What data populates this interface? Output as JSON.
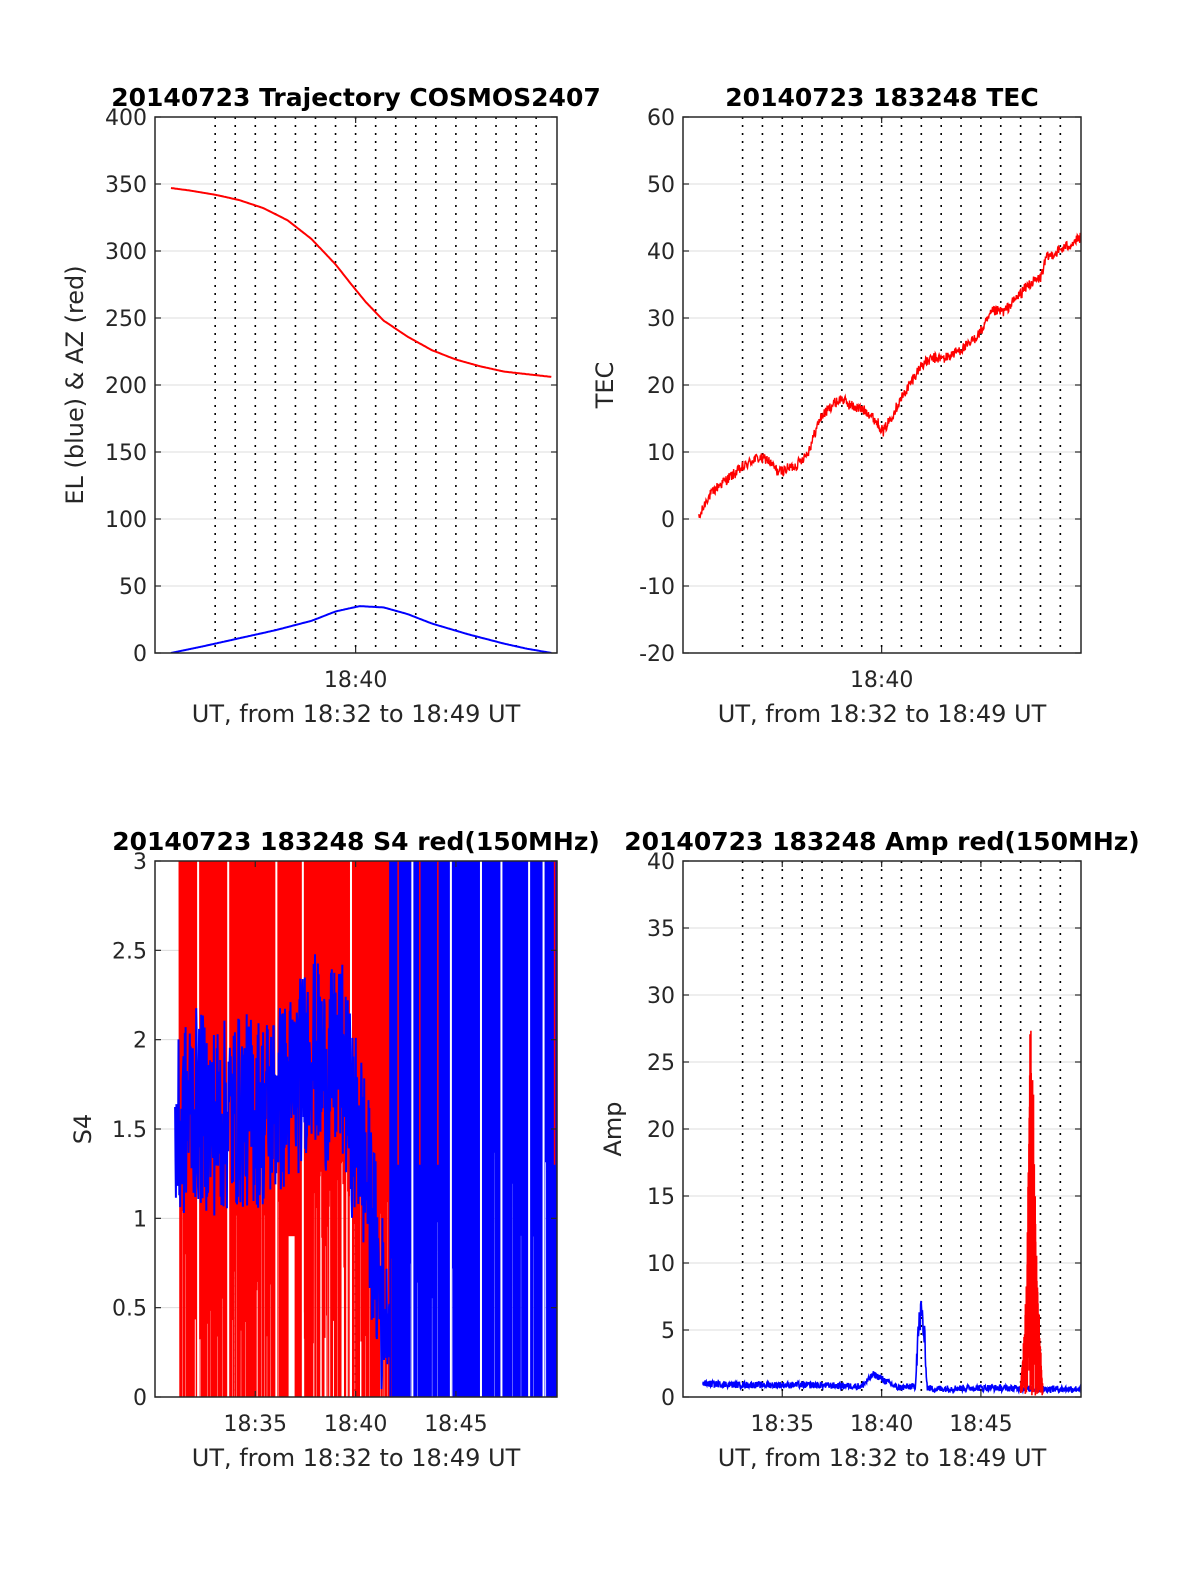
{
  "figure": {
    "panels": [
      {
        "id": "traj",
        "title": "20140723 Trajectory COSMOS2407",
        "ylabel": "EL (blue) & AZ (red)",
        "xlabel": "UT, from 18:32 to 18:49 UT",
        "xlim": [
          18.5,
          18.834
        ],
        "ylim": [
          0,
          400
        ],
        "yticks": [
          0,
          50,
          100,
          150,
          200,
          250,
          300,
          350,
          400
        ],
        "xticks": [
          {
            "v": 18.6667,
            "label": "18:40"
          }
        ],
        "grid_minutes": [
          33,
          34,
          35,
          36,
          37,
          38,
          39,
          40,
          41,
          42,
          43,
          44,
          45,
          46,
          47,
          48,
          49
        ],
        "hgrid": true
      },
      {
        "id": "tec",
        "title": "20140723 183248 TEC",
        "ylabel": "TEC",
        "xlabel": "UT, from 18:32 to 18:49 UT",
        "xlim": [
          18.5,
          18.834
        ],
        "ylim": [
          -20,
          60
        ],
        "yticks": [
          -20,
          -10,
          0,
          10,
          20,
          30,
          40,
          50,
          60
        ],
        "xticks": [
          {
            "v": 18.6667,
            "label": "18:40"
          }
        ],
        "grid_minutes": [
          33,
          34,
          35,
          36,
          37,
          38,
          39,
          40,
          41,
          42,
          43,
          44,
          45,
          46,
          47,
          48,
          49
        ],
        "hgrid": true
      },
      {
        "id": "s4",
        "title": "20140723 183248 S4 red(150MHz)",
        "ylabel": "S4",
        "xlabel": "UT, from 18:32 to 18:49 UT",
        "xlim": [
          18.5,
          18.834
        ],
        "ylim": [
          0,
          3
        ],
        "yticks": [
          0,
          0.5,
          1,
          1.5,
          2,
          2.5,
          3
        ],
        "xticks": [
          {
            "v": 18.5833,
            "label": "18:35"
          },
          {
            "v": 18.6667,
            "label": "18:40"
          },
          {
            "v": 18.75,
            "label": "18:45"
          }
        ],
        "grid_minutes": [
          33,
          34,
          35,
          36,
          37,
          38,
          39,
          40,
          41,
          42,
          43,
          44,
          45,
          46,
          47,
          48,
          49
        ],
        "hgrid": true
      },
      {
        "id": "amp",
        "title": "20140723 183248 Amp red(150MHz)",
        "ylabel": "Amp",
        "xlabel": "UT, from 18:32 to 18:49 UT",
        "xlim": [
          18.5,
          18.834
        ],
        "ylim": [
          0,
          40
        ],
        "yticks": [
          0,
          5,
          10,
          15,
          20,
          25,
          30,
          35,
          40
        ],
        "xticks": [
          {
            "v": 18.5833,
            "label": "18:35"
          },
          {
            "v": 18.6667,
            "label": "18:40"
          },
          {
            "v": 18.75,
            "label": "18:45"
          }
        ],
        "grid_minutes": [
          33,
          34,
          35,
          36,
          37,
          38,
          39,
          40,
          41,
          42,
          43,
          44,
          45,
          46,
          47,
          48,
          49
        ],
        "hgrid": true
      }
    ]
  },
  "chart_data": [
    {
      "type": "line",
      "title": "20140723 Trajectory COSMOS2407",
      "xlabel": "UT, from 18:32 to 18:49 UT",
      "ylabel": "EL (blue) & AZ (red)",
      "xlim": [
        18.5,
        18.834
      ],
      "ylim": [
        0,
        400
      ],
      "series": [
        {
          "color": "#ff0000",
          "x": [
            18.5133,
            18.53,
            18.55,
            18.57,
            18.59,
            18.61,
            18.63,
            18.65,
            18.665,
            18.675,
            18.69,
            18.71,
            18.73,
            18.75,
            18.77,
            18.79,
            18.81,
            18.83
          ],
          "y": [
            347,
            345,
            342,
            338,
            332,
            323,
            309,
            290,
            273,
            262,
            248,
            236,
            226,
            219,
            214,
            210,
            208,
            206
          ]
        },
        {
          "color": "#0000ff",
          "x": [
            18.5133,
            18.54,
            18.57,
            18.6,
            18.63,
            18.65,
            18.67,
            18.69,
            18.71,
            18.73,
            18.76,
            18.79,
            18.81,
            18.83
          ],
          "y": [
            0,
            5,
            11,
            17,
            24,
            31,
            35,
            34,
            29,
            22,
            14,
            7,
            3,
            0
          ]
        }
      ]
    },
    {
      "type": "line",
      "title": "20140723 183248 TEC",
      "xlabel": "UT, from 18:32 to 18:49 UT",
      "ylabel": "TEC",
      "xlim": [
        18.5,
        18.834
      ],
      "ylim": [
        -20,
        60
      ],
      "series": [
        {
          "color": "#ff0000",
          "x": [
            18.5133,
            18.52,
            18.53,
            18.545,
            18.56,
            18.57,
            18.58,
            18.595,
            18.605,
            18.615,
            18.625,
            18.633,
            18.64,
            18.655,
            18.665,
            18.668,
            18.68,
            18.69,
            18.7,
            18.71,
            18.72,
            18.73,
            18.74,
            18.75,
            18.76,
            18.77,
            18.78,
            18.79,
            18.8,
            18.805,
            18.815,
            18.825,
            18.834
          ],
          "y": [
            0,
            3,
            5,
            7,
            9,
            9,
            7,
            8,
            10,
            15,
            17,
            18,
            17,
            16,
            14,
            13,
            17,
            20,
            23,
            24,
            24,
            25,
            26,
            28,
            31,
            31,
            33,
            35,
            36,
            39,
            40,
            41,
            42
          ]
        }
      ]
    },
    {
      "type": "line",
      "title": "20140723 183248 S4 red(150MHz)",
      "xlabel": "UT, from 18:32 to 18:49 UT",
      "ylabel": "S4",
      "xlim": [
        18.5,
        18.834
      ],
      "ylim": [
        0,
        3
      ],
      "series": [
        {
          "color": "#ff0000",
          "x": [
            18.52,
            18.703
          ],
          "y": [
            0,
            3
          ],
          "note_range": "dense oscillation between 0 and 3"
        },
        {
          "color": "#0000ff",
          "x": [
            18.5167,
            18.53,
            18.55,
            18.57,
            18.59,
            18.61,
            18.62,
            18.63,
            18.64,
            18.655,
            18.66,
            18.665,
            18.67,
            18.678,
            18.685,
            18.69,
            18.695,
            18.7
          ],
          "y": [
            1.4,
            1.65,
            1.55,
            1.6,
            1.6,
            1.7,
            1.8,
            2.0,
            1.8,
            1.9,
            1.7,
            1.5,
            1.5,
            1.1,
            0.7,
            0.45,
            0.5,
            1.5
          ]
        }
      ]
    },
    {
      "type": "line",
      "title": "20140723 183248 Amp red(150MHz)",
      "xlabel": "UT, from 18:32 to 18:49 UT",
      "ylabel": "Amp",
      "xlim": [
        18.5,
        18.834
      ],
      "ylim": [
        0,
        40
      ],
      "series": [
        {
          "color": "#0000ff",
          "x": [
            18.5167,
            18.55,
            18.6,
            18.65,
            18.66,
            18.68,
            18.695,
            18.697,
            18.7,
            18.702,
            18.705,
            18.71,
            18.75,
            18.8,
            18.834
          ],
          "y": [
            0.9,
            0.8,
            0.8,
            0.7,
            1.6,
            0.6,
            0.7,
            4.0,
            6.0,
            4.5,
            0.6,
            0.5,
            0.6,
            0.5,
            0.5
          ]
        },
        {
          "color": "#ff0000",
          "x": [
            18.7833,
            18.785,
            18.787,
            18.789,
            18.79,
            18.791,
            18.792,
            18.793,
            18.794,
            18.795,
            18.796,
            18.797,
            18.799,
            18.8,
            18.801,
            18.802
          ],
          "y": [
            1,
            3,
            6,
            12,
            20,
            31,
            29,
            23,
            25,
            18,
            14,
            10,
            6,
            4,
            2,
            1
          ]
        }
      ]
    }
  ]
}
